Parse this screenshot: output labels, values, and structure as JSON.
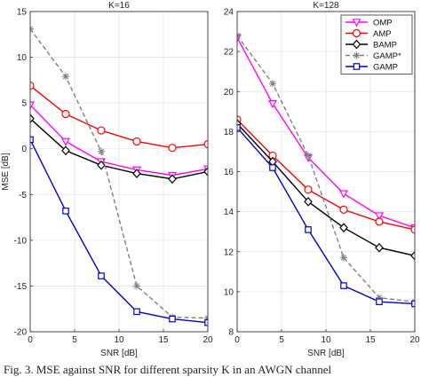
{
  "caption": "Fig. 3.  MSE against SNR for different sparsity K in an AWGN channel",
  "chart_data": [
    {
      "type": "line",
      "title": "K=16",
      "xlabel": "SNR [dB]",
      "ylabel": "MSE [dB]",
      "xlim": [
        0,
        20
      ],
      "ylim": [
        -20,
        15
      ],
      "x_ticks": [
        0,
        5,
        10,
        15,
        20
      ],
      "y_ticks": [
        -20,
        -15,
        -10,
        -5,
        0,
        5,
        10,
        15
      ],
      "grid": true,
      "x": [
        0,
        4,
        8,
        12,
        16,
        20
      ],
      "series": [
        {
          "name": "OMP",
          "values": [
            4.8,
            0.8,
            -1.4,
            -2.3,
            -2.9,
            -2.2
          ]
        },
        {
          "name": "AMP",
          "values": [
            6.9,
            3.8,
            2.0,
            0.8,
            0.1,
            0.5
          ]
        },
        {
          "name": "BAMP",
          "values": [
            3.3,
            -0.2,
            -1.8,
            -2.7,
            -3.3,
            -2.5
          ]
        },
        {
          "name": "GAMP*",
          "values": [
            13.1,
            7.9,
            -0.3,
            -15.0,
            -18.4,
            -18.5
          ]
        },
        {
          "name": "GAMP",
          "values": [
            1.0,
            -6.8,
            -13.9,
            -17.8,
            -18.6,
            -19.0
          ]
        }
      ]
    },
    {
      "type": "line",
      "title": "K=128",
      "xlabel": "SNR [dB]",
      "ylabel": "",
      "xlim": [
        0,
        20
      ],
      "ylim": [
        8,
        24
      ],
      "x_ticks": [
        0,
        5,
        10,
        15,
        20
      ],
      "y_ticks": [
        8,
        10,
        12,
        14,
        16,
        18,
        20,
        22,
        24
      ],
      "grid": true,
      "legend": "top-right",
      "x": [
        0,
        4,
        8,
        12,
        16,
        20
      ],
      "series": [
        {
          "name": "OMP",
          "values": [
            22.7,
            19.4,
            16.7,
            14.9,
            13.8,
            13.2
          ]
        },
        {
          "name": "AMP",
          "values": [
            18.6,
            16.8,
            15.1,
            14.1,
            13.5,
            13.1
          ]
        },
        {
          "name": "BAMP",
          "values": [
            18.4,
            16.5,
            14.5,
            13.2,
            12.2,
            11.8
          ]
        },
        {
          "name": "GAMP*",
          "values": [
            22.8,
            20.4,
            16.8,
            11.7,
            9.7,
            9.5
          ]
        },
        {
          "name": "GAMP",
          "values": [
            18.2,
            16.2,
            13.1,
            10.3,
            9.5,
            9.4
          ]
        }
      ]
    }
  ],
  "styles": {
    "OMP": {
      "color": "#ff00ff",
      "marker": "triangle-down",
      "dash": "solid"
    },
    "AMP": {
      "color": "#ff0000",
      "marker": "circle",
      "dash": "solid"
    },
    "BAMP": {
      "color": "#000000",
      "marker": "diamond",
      "dash": "solid"
    },
    "GAMP*": {
      "color": "#808080",
      "marker": "asterisk",
      "dash": "dashed"
    },
    "GAMP": {
      "color": "#0000cc",
      "marker": "square",
      "dash": "solid"
    }
  },
  "legend_entries": [
    {
      "label": "OMP",
      "series": "OMP"
    },
    {
      "label": "AMP",
      "series": "AMP"
    },
    {
      "label": "BAMP",
      "series": "BAMP"
    },
    {
      "label": "GAMP*",
      "series": "GAMP*"
    },
    {
      "label": "GAMP",
      "series": "GAMP"
    }
  ]
}
